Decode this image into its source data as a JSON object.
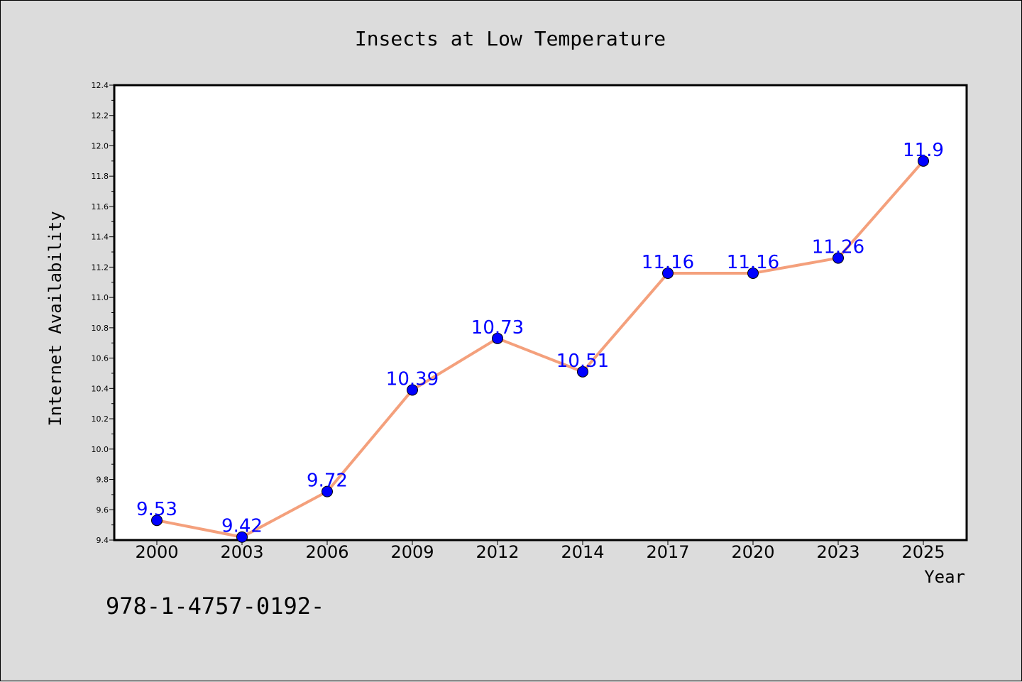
{
  "chart_data": {
    "type": "line",
    "title": "Insects at Low Temperature",
    "xlabel": "Year",
    "ylabel": "Internet Availability",
    "categories": [
      "2000",
      "2003",
      "2006",
      "2009",
      "2012",
      "2014",
      "2017",
      "2020",
      "2023",
      "2025"
    ],
    "series": [
      {
        "values": [
          9.53,
          9.42,
          9.72,
          10.39,
          10.73,
          10.51,
          11.16,
          11.16,
          11.26,
          11.9
        ]
      }
    ],
    "data_labels": [
      "9.53",
      "9.42",
      "9.72",
      "10.39",
      "10.73",
      "10.51",
      "11.16",
      "11.16",
      "11.26",
      "11.9"
    ],
    "ylim": [
      9.4,
      12.4
    ],
    "yticks": [
      9.4,
      9.6,
      9.8,
      10.0,
      10.2,
      10.4,
      10.6,
      10.8,
      11.0,
      11.2,
      11.4,
      11.6,
      11.8,
      12.0,
      12.2,
      12.4
    ],
    "ytick_labels": [
      "9.4",
      "9.6",
      "9.8",
      "10.0",
      "10.2",
      "10.4",
      "10.6",
      "10.8",
      "11.0",
      "11.2",
      "11.4",
      "11.6",
      "11.8",
      "12.0",
      "12.2",
      "12.4"
    ],
    "grid": false,
    "line_color": "#f4a07c",
    "marker_color": "#0000ff",
    "label_color": "#0000ff"
  },
  "footer_text": "978-1-4757-0192-"
}
